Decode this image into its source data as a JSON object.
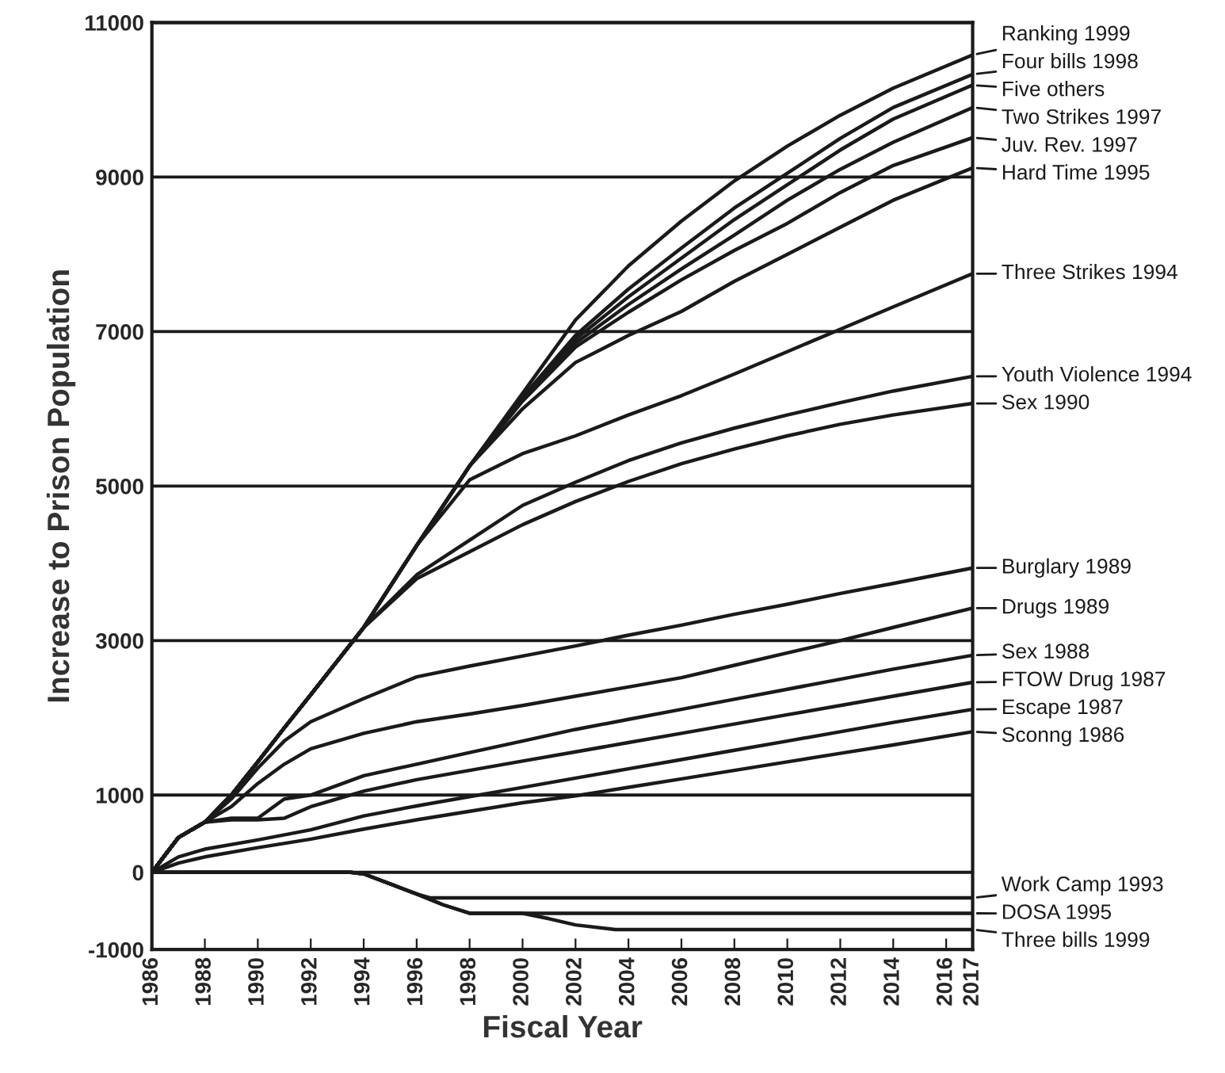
{
  "chart_data": {
    "type": "line",
    "xlabel": "Fiscal Year",
    "ylabel": "Increase to Prison Population",
    "xlim": [
      1986,
      2017
    ],
    "xticks": [
      1986,
      1988,
      1990,
      1992,
      1994,
      1996,
      1998,
      2000,
      2002,
      2004,
      2006,
      2008,
      2010,
      2012,
      2014,
      2016,
      2017
    ],
    "ylim": [
      -1000,
      11000
    ],
    "yticks": [
      -1000,
      0,
      1000,
      3000,
      5000,
      7000,
      9000,
      11000
    ],
    "grid": "y",
    "legend": "right",
    "marker": "none",
    "line_style": "solid",
    "series": [
      {
        "name": "Ranking 1999",
        "color": "#1a1a1a",
        "x": [
          1986,
          1987,
          1988,
          1989,
          1990,
          1991,
          1992,
          1994,
          1996,
          1998,
          2000,
          2002,
          2004,
          2006,
          2008,
          2010,
          2012,
          2014,
          2017
        ],
        "values": [
          0,
          450,
          650,
          1000,
          1430,
          1870,
          2300,
          3170,
          4230,
          5260,
          6200,
          7150,
          7850,
          8430,
          8950,
          9400,
          9800,
          10150,
          10580
        ]
      },
      {
        "name": "Four bills 1998",
        "color": "#1a1a1a",
        "x": [
          1986,
          1987,
          1988,
          1989,
          1990,
          1991,
          1992,
          1994,
          1996,
          1998,
          2000,
          2002,
          2004,
          2006,
          2008,
          2010,
          2012,
          2014,
          2017
        ],
        "values": [
          0,
          450,
          650,
          1000,
          1430,
          1870,
          2300,
          3170,
          4230,
          5260,
          6150,
          6950,
          7550,
          8080,
          8600,
          9050,
          9500,
          9900,
          10330
        ]
      },
      {
        "name": "Five others",
        "color": "#1a1a1a",
        "x": [
          1986,
          1987,
          1988,
          1989,
          1990,
          1991,
          1992,
          1994,
          1996,
          1998,
          2000,
          2002,
          2004,
          2006,
          2008,
          2010,
          2012,
          2014,
          2017
        ],
        "values": [
          0,
          450,
          650,
          1000,
          1430,
          1870,
          2300,
          3170,
          4230,
          5260,
          6150,
          6900,
          7450,
          7950,
          8450,
          8900,
          9350,
          9750,
          10190
        ]
      },
      {
        "name": "Two Strikes 1997",
        "color": "#1a1a1a",
        "x": [
          1986,
          1987,
          1988,
          1989,
          1990,
          1991,
          1992,
          1994,
          1996,
          1998,
          2000,
          2002,
          2004,
          2006,
          2008,
          2010,
          2012,
          2014,
          2017
        ],
        "values": [
          0,
          450,
          650,
          1000,
          1430,
          1870,
          2300,
          3170,
          4230,
          5260,
          6150,
          6850,
          7350,
          7810,
          8250,
          8700,
          9100,
          9450,
          9900
        ]
      },
      {
        "name": "Juv. Rev. 1997",
        "color": "#1a1a1a",
        "x": [
          1986,
          1987,
          1988,
          1989,
          1990,
          1991,
          1992,
          1994,
          1996,
          1998,
          2000,
          2002,
          2004,
          2006,
          2008,
          2010,
          2012,
          2014,
          2017
        ],
        "values": [
          0,
          450,
          650,
          1000,
          1430,
          1870,
          2300,
          3170,
          4230,
          5260,
          6100,
          6800,
          7250,
          7670,
          8050,
          8400,
          8800,
          9150,
          9510
        ]
      },
      {
        "name": "Hard Time 1995",
        "color": "#1a1a1a",
        "x": [
          1986,
          1987,
          1988,
          1989,
          1990,
          1991,
          1992,
          1994,
          1996,
          1998,
          2000,
          2002,
          2004,
          2006,
          2008,
          2010,
          2012,
          2014,
          2017
        ],
        "values": [
          0,
          450,
          650,
          1000,
          1430,
          1870,
          2300,
          3170,
          4230,
          5260,
          6000,
          6600,
          6950,
          7260,
          7650,
          8000,
          8350,
          8700,
          9120
        ]
      },
      {
        "name": "Three Strikes 1994",
        "color": "#1a1a1a",
        "x": [
          1986,
          1987,
          1988,
          1989,
          1990,
          1991,
          1992,
          1994,
          1996,
          1998,
          2000,
          2002,
          2004,
          2006,
          2008,
          2010,
          2012,
          2014,
          2017
        ],
        "values": [
          0,
          450,
          650,
          1000,
          1430,
          1870,
          2300,
          3170,
          4230,
          5080,
          5420,
          5650,
          5920,
          6170,
          6450,
          6740,
          7030,
          7320,
          7750
        ]
      },
      {
        "name": "Youth Violence 1994",
        "color": "#1a1a1a",
        "x": [
          1986,
          1987,
          1988,
          1989,
          1990,
          1991,
          1992,
          1994,
          1996,
          1998,
          2000,
          2002,
          2004,
          2006,
          2008,
          2010,
          2012,
          2014,
          2017
        ],
        "values": [
          0,
          450,
          650,
          1000,
          1430,
          1870,
          2300,
          3170,
          3850,
          4300,
          4750,
          5050,
          5330,
          5560,
          5750,
          5920,
          6080,
          6230,
          6420
        ]
      },
      {
        "name": "Sex 1990",
        "color": "#1a1a1a",
        "x": [
          1986,
          1987,
          1988,
          1989,
          1990,
          1991,
          1992,
          1994,
          1996,
          1998,
          2000,
          2002,
          2004,
          2006,
          2008,
          2010,
          2012,
          2014,
          2017
        ],
        "values": [
          0,
          450,
          650,
          1000,
          1430,
          1870,
          2300,
          3170,
          3800,
          4150,
          4500,
          4800,
          5060,
          5290,
          5480,
          5650,
          5800,
          5920,
          6070
        ]
      },
      {
        "name": "Burglary 1989",
        "color": "#1a1a1a",
        "x": [
          1986,
          1987,
          1988,
          1989,
          1990,
          1991,
          1992,
          1994,
          1996,
          1998,
          2000,
          2002,
          2004,
          2006,
          2008,
          2010,
          2012,
          2014,
          2017
        ],
        "values": [
          0,
          450,
          650,
          950,
          1350,
          1700,
          1950,
          2250,
          2530,
          2670,
          2800,
          2930,
          3070,
          3200,
          3340,
          3470,
          3610,
          3740,
          3940
        ]
      },
      {
        "name": "Drugs 1989",
        "color": "#1a1a1a",
        "x": [
          1986,
          1987,
          1988,
          1989,
          1990,
          1991,
          1992,
          1994,
          1996,
          1998,
          2000,
          2002,
          2004,
          2006,
          2008,
          2010,
          2012,
          2014,
          2017
        ],
        "values": [
          0,
          450,
          650,
          850,
          1150,
          1400,
          1600,
          1800,
          1950,
          2050,
          2160,
          2280,
          2400,
          2520,
          2680,
          2840,
          3000,
          3170,
          3420
        ]
      },
      {
        "name": "Sex 1988",
        "color": "#1a1a1a",
        "x": [
          1986,
          1987,
          1988,
          1989,
          1990,
          1991,
          1992,
          1994,
          1996,
          1998,
          2000,
          2002,
          2004,
          2006,
          2008,
          2010,
          2012,
          2014,
          2017
        ],
        "values": [
          0,
          450,
          650,
          700,
          700,
          950,
          1000,
          1250,
          1400,
          1550,
          1700,
          1850,
          1980,
          2110,
          2240,
          2370,
          2500,
          2630,
          2810
        ]
      },
      {
        "name": "FTOW Drug 1987",
        "color": "#1a1a1a",
        "x": [
          1986,
          1987,
          1988,
          1989,
          1990,
          1991,
          1992,
          1994,
          1996,
          1998,
          2000,
          2002,
          2004,
          2006,
          2008,
          2010,
          2012,
          2014,
          2017
        ],
        "values": [
          0,
          450,
          650,
          680,
          680,
          700,
          850,
          1050,
          1200,
          1320,
          1440,
          1560,
          1680,
          1800,
          1920,
          2040,
          2160,
          2280,
          2460
        ]
      },
      {
        "name": "Escape 1987",
        "color": "#1a1a1a",
        "x": [
          1986,
          1987,
          1988,
          1990,
          1992,
          1994,
          1996,
          1998,
          2000,
          2002,
          2004,
          2006,
          2008,
          2010,
          2012,
          2014,
          2017
        ],
        "values": [
          0,
          200,
          300,
          420,
          550,
          730,
          860,
          980,
          1100,
          1220,
          1340,
          1460,
          1580,
          1700,
          1820,
          1940,
          2110
        ]
      },
      {
        "name": "Sconng 1986",
        "color": "#1a1a1a",
        "x": [
          1986,
          1987,
          1988,
          1990,
          1992,
          1994,
          1996,
          1998,
          2000,
          2002,
          2004,
          2006,
          2008,
          2010,
          2012,
          2014,
          2017
        ],
        "values": [
          0,
          120,
          200,
          320,
          430,
          560,
          680,
          790,
          900,
          990,
          1100,
          1210,
          1320,
          1430,
          1540,
          1650,
          1820
        ]
      },
      {
        "name": "Work Camp 1993",
        "color": "#1a1a1a",
        "x": [
          1986,
          1993.5,
          1994,
          1995,
          1996,
          1996.5,
          2017
        ],
        "values": [
          0,
          0,
          -20,
          -150,
          -280,
          -330,
          -330
        ]
      },
      {
        "name": "DOSA 1995",
        "color": "#1a1a1a",
        "x": [
          1986,
          1993.5,
          1994,
          1995,
          1996,
          1997,
          1998,
          2017
        ],
        "values": [
          0,
          0,
          -20,
          -150,
          -280,
          -420,
          -530,
          -530
        ]
      },
      {
        "name": "Three bills 1999",
        "color": "#1a1a1a",
        "x": [
          1986,
          1993.5,
          1994,
          1995,
          1996,
          1997,
          1998,
          2000,
          2001,
          2002,
          2003.5,
          2017
        ],
        "values": [
          0,
          0,
          -20,
          -150,
          -280,
          -420,
          -530,
          -530,
          -600,
          -680,
          -740,
          -740
        ]
      }
    ]
  }
}
